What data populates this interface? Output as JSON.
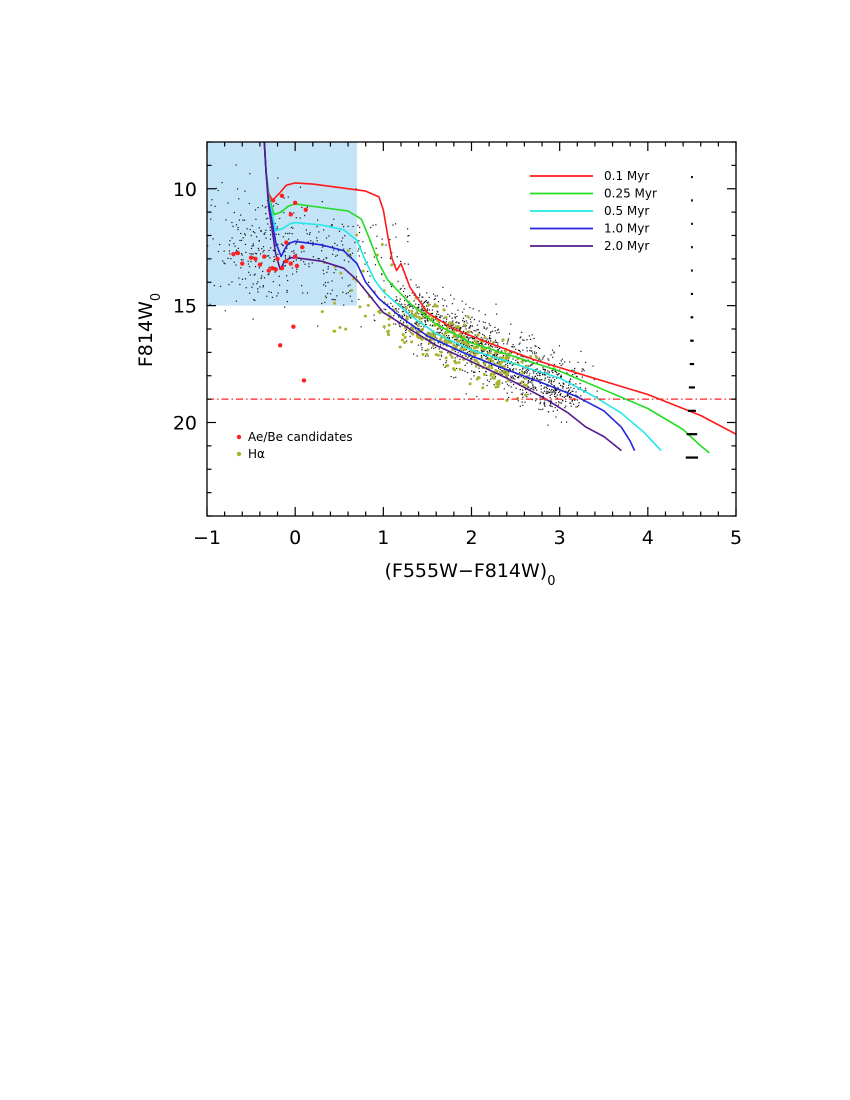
{
  "chart_data": {
    "type": "scatter",
    "xlabel": "(F555W−F814W)",
    "xlabel_subscript": "0",
    "ylabel": "F814W",
    "ylabel_subscript": "0",
    "xlim": [
      -1,
      5
    ],
    "ylim": [
      24,
      8
    ],
    "y_inverted": true,
    "x_ticks": [
      -1,
      0,
      1,
      2,
      3,
      4,
      5
    ],
    "x_tick_labels": [
      "−1",
      "0",
      "1",
      "2",
      "3",
      "4",
      "5"
    ],
    "y_ticks": [
      10,
      15,
      20
    ],
    "y_tick_labels": [
      "10",
      "15",
      "20"
    ],
    "grid": false,
    "shaded_region": {
      "x": [
        -1,
        0.7
      ],
      "y": [
        8,
        15
      ],
      "color": "#c3e3f7"
    },
    "threshold_line": {
      "y": 19,
      "style": "dash-dot",
      "color": "#ff2020"
    },
    "isochrones": [
      {
        "name": "0.1 Myr",
        "color": "#ff1a1a",
        "points": [
          [
            -0.35,
            8
          ],
          [
            -0.33,
            9.3
          ],
          [
            -0.3,
            10.2
          ],
          [
            -0.26,
            10.5
          ],
          [
            -0.18,
            10.2
          ],
          [
            -0.1,
            9.85
          ],
          [
            0,
            9.75
          ],
          [
            0.2,
            9.8
          ],
          [
            0.5,
            9.95
          ],
          [
            0.8,
            10.1
          ],
          [
            0.95,
            10.35
          ],
          [
            1.0,
            10.9
          ],
          [
            1.05,
            12.0
          ],
          [
            1.1,
            13.0
          ],
          [
            1.15,
            13.5
          ],
          [
            1.2,
            13.2
          ],
          [
            1.3,
            14.2
          ],
          [
            1.5,
            15.3
          ],
          [
            1.8,
            16.0
          ],
          [
            2.2,
            16.6
          ],
          [
            2.7,
            17.3
          ],
          [
            3.3,
            18.0
          ],
          [
            4.0,
            18.8
          ],
          [
            4.6,
            19.7
          ],
          [
            5.0,
            20.5
          ]
        ]
      },
      {
        "name": "0.25 Myr",
        "color": "#22dd22",
        "points": [
          [
            -0.35,
            8
          ],
          [
            -0.33,
            9.3
          ],
          [
            -0.3,
            10.3
          ],
          [
            -0.24,
            11.1
          ],
          [
            -0.16,
            11.0
          ],
          [
            -0.08,
            10.75
          ],
          [
            0,
            10.65
          ],
          [
            0.3,
            10.8
          ],
          [
            0.6,
            10.95
          ],
          [
            0.75,
            11.3
          ],
          [
            0.85,
            12.2
          ],
          [
            0.95,
            13.2
          ],
          [
            1.05,
            13.9
          ],
          [
            1.3,
            14.9
          ],
          [
            1.6,
            15.8
          ],
          [
            2.0,
            16.6
          ],
          [
            2.5,
            17.2
          ],
          [
            3.0,
            17.8
          ],
          [
            3.5,
            18.6
          ],
          [
            4.0,
            19.4
          ],
          [
            4.4,
            20.3
          ],
          [
            4.6,
            21.0
          ],
          [
            4.7,
            21.3
          ]
        ]
      },
      {
        "name": "0.5 Myr",
        "color": "#22e8e8",
        "points": [
          [
            -0.35,
            8
          ],
          [
            -0.33,
            9.3
          ],
          [
            -0.3,
            10.4
          ],
          [
            -0.22,
            11.8
          ],
          [
            -0.14,
            11.7
          ],
          [
            -0.06,
            11.5
          ],
          [
            0,
            11.45
          ],
          [
            0.3,
            11.55
          ],
          [
            0.55,
            11.75
          ],
          [
            0.7,
            12.2
          ],
          [
            0.8,
            13.1
          ],
          [
            0.9,
            13.9
          ],
          [
            1.0,
            14.4
          ],
          [
            1.3,
            15.4
          ],
          [
            1.6,
            16.2
          ],
          [
            2.0,
            16.9
          ],
          [
            2.5,
            17.5
          ],
          [
            3.0,
            18.1
          ],
          [
            3.4,
            18.9
          ],
          [
            3.7,
            19.6
          ],
          [
            3.95,
            20.4
          ],
          [
            4.15,
            21.2
          ]
        ]
      },
      {
        "name": "1.0 Myr",
        "color": "#2424dd",
        "points": [
          [
            -0.35,
            8
          ],
          [
            -0.33,
            9.3
          ],
          [
            -0.3,
            10.6
          ],
          [
            -0.22,
            12.3
          ],
          [
            -0.16,
            12.9
          ],
          [
            -0.12,
            12.6
          ],
          [
            -0.08,
            12.35
          ],
          [
            0,
            12.25
          ],
          [
            0.3,
            12.4
          ],
          [
            0.55,
            12.65
          ],
          [
            0.7,
            13.2
          ],
          [
            0.8,
            14.0
          ],
          [
            0.95,
            14.7
          ],
          [
            1.2,
            15.5
          ],
          [
            1.5,
            16.3
          ],
          [
            1.9,
            17.0
          ],
          [
            2.3,
            17.6
          ],
          [
            2.8,
            18.3
          ],
          [
            3.2,
            18.9
          ],
          [
            3.5,
            19.5
          ],
          [
            3.7,
            20.2
          ],
          [
            3.8,
            20.8
          ],
          [
            3.85,
            21.2
          ]
        ]
      },
      {
        "name": "2.0 Myr",
        "color": "#551a8b",
        "points": [
          [
            -0.35,
            8
          ],
          [
            -0.33,
            9.3
          ],
          [
            -0.3,
            10.8
          ],
          [
            -0.22,
            12.8
          ],
          [
            -0.17,
            13.45
          ],
          [
            -0.12,
            13.1
          ],
          [
            -0.05,
            12.95
          ],
          [
            0,
            12.95
          ],
          [
            0.3,
            13.1
          ],
          [
            0.55,
            13.4
          ],
          [
            0.7,
            13.9
          ],
          [
            0.85,
            14.6
          ],
          [
            1.0,
            15.3
          ],
          [
            1.3,
            16.0
          ],
          [
            1.6,
            16.7
          ],
          [
            2.0,
            17.4
          ],
          [
            2.4,
            18.1
          ],
          [
            2.8,
            18.9
          ],
          [
            3.1,
            19.6
          ],
          [
            3.3,
            20.2
          ],
          [
            3.5,
            20.6
          ],
          [
            3.6,
            20.9
          ],
          [
            3.7,
            21.2
          ]
        ]
      }
    ],
    "legend": {
      "position": "top-right",
      "entries": [
        "0.1 Myr",
        "0.25 Myr",
        "0.5 Myr",
        "1.0 Myr",
        "2.0 Myr"
      ]
    },
    "point_legend": {
      "position": "bottom-left",
      "entries": [
        {
          "name": "Ae/Be candidates",
          "color": "#ff2020"
        },
        {
          "name": "Hα",
          "color": "#a8b22c"
        }
      ]
    },
    "ae_be_candidates": [
      [
        -0.7,
        12.8
      ],
      [
        -0.65,
        12.75
      ],
      [
        -0.6,
        13.2
      ],
      [
        -0.5,
        12.95
      ],
      [
        -0.45,
        13.0
      ],
      [
        -0.4,
        13.25
      ],
      [
        -0.35,
        12.9
      ],
      [
        -0.3,
        13.5
      ],
      [
        -0.26,
        13.4
      ],
      [
        -0.22,
        13.45
      ],
      [
        -0.2,
        13.0
      ],
      [
        -0.15,
        13.4
      ],
      [
        -0.1,
        13.1
      ],
      [
        -0.05,
        13.2
      ],
      [
        0.0,
        12.9
      ],
      [
        0.02,
        13.3
      ],
      [
        0.08,
        12.5
      ],
      [
        -0.25,
        10.5
      ],
      [
        -0.15,
        10.3
      ],
      [
        -0.05,
        11.1
      ],
      [
        0.12,
        10.9
      ],
      [
        0.0,
        10.6
      ],
      [
        -0.02,
        15.9
      ],
      [
        -0.17,
        16.7
      ],
      [
        0.1,
        18.2
      ],
      [
        -0.1,
        12.3
      ]
    ],
    "error_bars": [
      {
        "y": 9.5,
        "half_width": 0.01
      },
      {
        "y": 10.5,
        "half_width": 0.01
      },
      {
        "y": 11.5,
        "half_width": 0.01
      },
      {
        "y": 12.5,
        "half_width": 0.01
      },
      {
        "y": 13.5,
        "half_width": 0.01
      },
      {
        "y": 14.5,
        "half_width": 0.012
      },
      {
        "y": 15.5,
        "half_width": 0.015
      },
      {
        "y": 16.5,
        "half_width": 0.02
      },
      {
        "y": 17.5,
        "half_width": 0.025
      },
      {
        "y": 18.5,
        "half_width": 0.035
      },
      {
        "y": 19.5,
        "half_width": 0.045
      },
      {
        "y": 20.5,
        "half_width": 0.06
      },
      {
        "y": 21.5,
        "half_width": 0.07
      }
    ],
    "error_bar_x": 4.5
  }
}
